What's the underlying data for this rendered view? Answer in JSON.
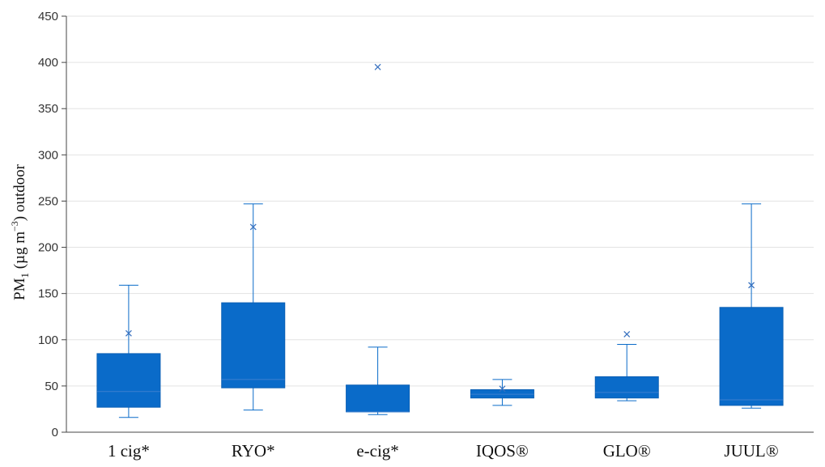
{
  "chart_data": {
    "type": "box",
    "title": "",
    "ylabel": "PM",
    "ylabel_subscript": "1",
    "ylabel_mid": " (µg m",
    "ylabel_superscript": "−3",
    "ylabel_suffix": ") outdoor",
    "ylim": [
      0,
      450
    ],
    "yticks": [
      0,
      50,
      100,
      150,
      200,
      250,
      300,
      350,
      400,
      450
    ],
    "grid": true,
    "box_color": "#0a6bc9",
    "median_color": "#3d7fd0",
    "categories": [
      "1 cig*",
      "RYO*",
      "e-cig*",
      "IQOS®",
      "GLO®",
      "JUUL®"
    ],
    "boxes": [
      {
        "min": 16,
        "q1": 27,
        "median": 44,
        "q3": 85,
        "max": 159,
        "mean": 107,
        "outliers": []
      },
      {
        "min": 24,
        "q1": 48,
        "median": 57,
        "q3": 140,
        "max": 247,
        "mean": 222,
        "outliers": []
      },
      {
        "min": 19,
        "q1": 22,
        "median": 22,
        "q3": 51,
        "max": 92,
        "mean": 395,
        "outliers": []
      },
      {
        "min": 29,
        "q1": 37,
        "median": 41,
        "q3": 46,
        "max": 57,
        "mean": 47,
        "outliers": []
      },
      {
        "min": 34,
        "q1": 37,
        "median": 43,
        "q3": 60,
        "max": 95,
        "mean": 106,
        "outliers": []
      },
      {
        "min": 26,
        "q1": 29,
        "median": 35,
        "q3": 135,
        "max": 247,
        "mean": 159,
        "outliers": []
      }
    ]
  }
}
